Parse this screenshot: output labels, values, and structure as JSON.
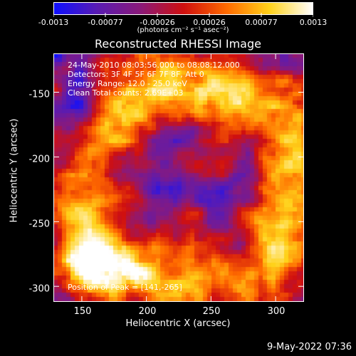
{
  "colorbar": {
    "ticks": [
      "-0.0013",
      "-0.00077",
      "-0.00026",
      "0.00026",
      "0.00077",
      "0.0013"
    ],
    "units": "(photons cm⁻² s⁻¹ asec⁻²)",
    "colors": [
      "#1010ff",
      "#5a1cb3",
      "#8b1a7a",
      "#d01010",
      "#ff6a00",
      "#ffd21a",
      "#ffffff"
    ]
  },
  "plot": {
    "title": "Reconstructed RHESSI Image",
    "info_lines": [
      "24-May-2010 08:03:56.000 to 08:08:12.000",
      "Detectors: 3F 4F 5F 6F 7F 8F, Att 0",
      "Energy Range: 12.0 - 25.0 keV",
      "Clean     Total counts: 2.69E+03"
    ],
    "peak_text": "Position of Peak = [141,-265]",
    "xlabel": "Heliocentric X (arcsec)",
    "ylabel": "Heliocentric Y (arcsec)",
    "xticks": [
      "150",
      "200",
      "250",
      "300"
    ],
    "yticks": [
      "-150",
      "-200",
      "-250",
      "-300"
    ],
    "xlim": [
      128,
      322
    ],
    "ylim": [
      -312,
      -120
    ]
  },
  "footer": {
    "timestamp": "9-May-2022 07:36"
  }
}
